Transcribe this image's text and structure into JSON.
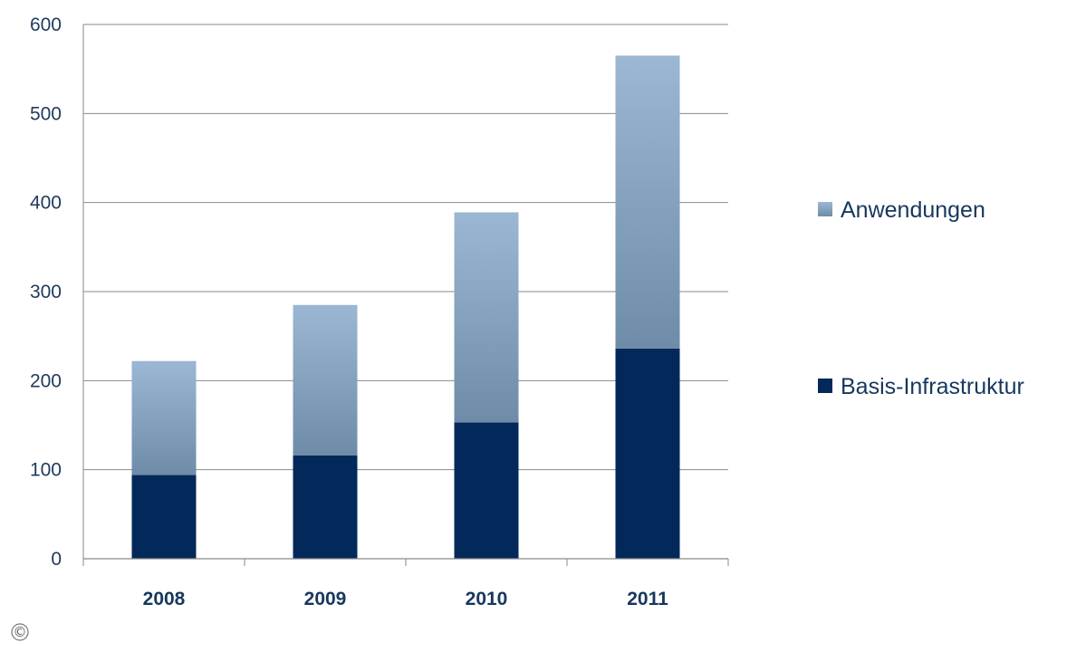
{
  "chart_data": {
    "type": "bar",
    "stacked": true,
    "categories": [
      "2008",
      "2009",
      "2010",
      "2011"
    ],
    "series": [
      {
        "name": "Basis-Infrastruktur",
        "values": [
          94,
          116,
          153,
          236
        ],
        "color": "#03295a"
      },
      {
        "name": "Anwendungen",
        "values": [
          128,
          169,
          236,
          329
        ],
        "color": "#8fadc9"
      }
    ],
    "ylim": [
      0,
      600
    ],
    "yticks": [
      0,
      100,
      200,
      300,
      400,
      500,
      600
    ],
    "grid": true,
    "legend": "right",
    "legend_order": [
      "Anwendungen",
      "Basis-Infrastruktur"
    ]
  },
  "footer": {
    "copyright_symbol": "©"
  }
}
